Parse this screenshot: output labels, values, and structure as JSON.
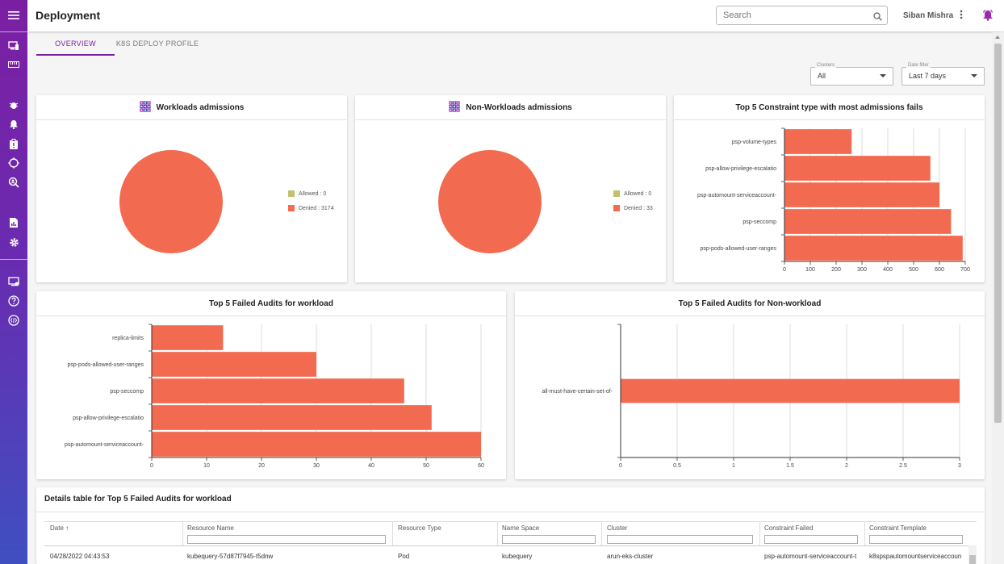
{
  "header": {
    "title": "Deployment",
    "search_placeholder": "Search",
    "user_name": "Siban Mishra"
  },
  "tabs": [
    {
      "label": "OVERVIEW"
    },
    {
      "label": "K8S DEPLOY PROFILE"
    }
  ],
  "filters": {
    "clusters": {
      "label": "Clusters",
      "value": "All"
    },
    "date": {
      "label": "Date filter",
      "value": "Last 7 days"
    }
  },
  "workloads_card": {
    "title": "Workloads admissions",
    "legend": [
      "Allowed : 0",
      "Denied : 3174"
    ]
  },
  "nonworkloads_card": {
    "title": "Non-Workloads admissions",
    "legend": [
      "Allowed : 0",
      "Denied : 33"
    ]
  },
  "colors": {
    "accent": "#7b1fa2",
    "bar": "#f26a50",
    "allowed": "#c3bf6b",
    "denied": "#f26a50"
  },
  "chart_data": [
    {
      "type": "pie",
      "title": "Workloads admissions",
      "series": [
        {
          "name": "Allowed",
          "value": 0
        },
        {
          "name": "Denied",
          "value": 3174
        }
      ]
    },
    {
      "type": "pie",
      "title": "Non-Workloads admissions",
      "series": [
        {
          "name": "Allowed",
          "value": 0
        },
        {
          "name": "Denied",
          "value": 33
        }
      ]
    },
    {
      "type": "bar",
      "orientation": "horizontal",
      "title": "Top 5 Constraint type with most admissions fails",
      "categories": [
        "psp-volume-types",
        "psp-allow-privilege-escalatio",
        "psp-automount-serviceaccount-",
        "psp-seccomp",
        "psp-pods-allowed-user-ranges"
      ],
      "values": [
        260,
        565,
        600,
        645,
        690
      ],
      "xlim": [
        0,
        700
      ],
      "ticks": [
        "0",
        "100",
        "200",
        "300",
        "400",
        "500",
        "600",
        "700"
      ]
    },
    {
      "type": "bar",
      "orientation": "horizontal",
      "title": "Top 5 Failed Audits for workload",
      "categories": [
        "replica-limits",
        "psp-pods-allowed-user-ranges",
        "psp-seccomp",
        "psp-allow-privilege-escalatio",
        "psp-automount-serviceaccount-"
      ],
      "values": [
        13,
        30,
        46,
        51,
        60
      ],
      "xlim": [
        0,
        60
      ],
      "ticks": [
        "0",
        "10",
        "20",
        "30",
        "40",
        "50",
        "60"
      ]
    },
    {
      "type": "bar",
      "orientation": "horizontal",
      "title": "Top 5 Failed Audits for Non-workload",
      "categories": [
        "all-must-have-certain-set-of-"
      ],
      "values": [
        3
      ],
      "xlim": [
        0,
        3
      ],
      "ticks": [
        "0",
        "0.5",
        "1",
        "1.5",
        "2",
        "2.5",
        "3"
      ]
    }
  ],
  "details": {
    "title": "Details table for Top 5 Failed Audits for workload",
    "columns": [
      "Date",
      "Resource Name",
      "Resource Type",
      "Name Space",
      "Cluster",
      "Constraint Failed",
      "Constraint Template"
    ],
    "sort_indicator": "↑",
    "rows": [
      [
        "04/28/2022 04:43:53",
        "kubequery-57d87f7945-t5dnw",
        "Pod",
        "kubequery",
        "arun-eks-cluster",
        "psp-automount-serviceaccount-t",
        "k8spspautomountserviceaccoun"
      ]
    ]
  }
}
